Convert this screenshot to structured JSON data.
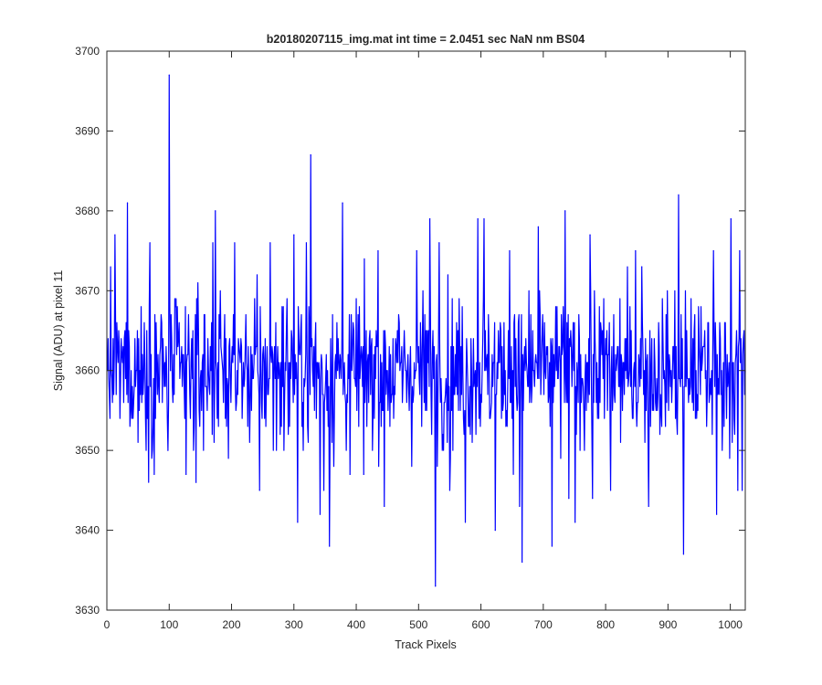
{
  "chart_data": {
    "type": "line",
    "title": "b20180207115_img.mat int time = 2.0451 sec  NaN nm BS04",
    "xlabel": "Track Pixels",
    "ylabel": "Signal (ADU) at pixel 11",
    "xlim": [
      0,
      1024
    ],
    "ylim": [
      3630,
      3700
    ],
    "xticks": [
      0,
      100,
      200,
      300,
      400,
      500,
      600,
      700,
      800,
      900,
      1000
    ],
    "xtick_labels": [
      "0",
      "100",
      "200",
      "300",
      "400",
      "500",
      "600",
      "700",
      "800",
      "900",
      "1000"
    ],
    "yticks": [
      3630,
      3640,
      3650,
      3660,
      3670,
      3680,
      3690,
      3700
    ],
    "ytick_labels": [
      "3630",
      "3640",
      "3650",
      "3660",
      "3670",
      "3680",
      "3690",
      "3700"
    ],
    "grid": false,
    "legend": "none",
    "line_color": "#0000ff",
    "series": [
      {
        "x": [
          1,
          13,
          33,
          69,
          76,
          98,
          100,
          102,
          127,
          143,
          170,
          174,
          205,
          245,
          262,
          300,
          306,
          320,
          327,
          342,
          348,
          357,
          378,
          390,
          412,
          435,
          445,
          497,
          518,
          527,
          533,
          550,
          575,
          595,
          605,
          623,
          646,
          662,
          666,
          692,
          714,
          735,
          741,
          751,
          775,
          779,
          808,
          848,
          858,
          869,
          917,
          920,
          925,
          973,
          978,
          1001,
          1012,
          1015,
          1019,
          1024
        ],
        "y": [
          3660,
          3677,
          3681,
          3676,
          3647,
          3650,
          3697,
          3660,
          3647,
          3646,
          3676,
          3680,
          3676,
          3645,
          3676,
          3677,
          3641,
          3676,
          3687,
          3642,
          3645,
          3638,
          3681,
          3647,
          3647,
          3675,
          3643,
          3675,
          3679,
          3633,
          3676,
          3645,
          3641,
          3679,
          3679,
          3640,
          3675,
          3643,
          3636,
          3678,
          3638,
          3680,
          3644,
          3641,
          3677,
          3644,
          3645,
          3675,
          3673,
          3643,
          3682,
          3658,
          3637,
          3675,
          3642,
          3679,
          3645,
          3675,
          3645,
          3660
        ]
      }
    ]
  }
}
